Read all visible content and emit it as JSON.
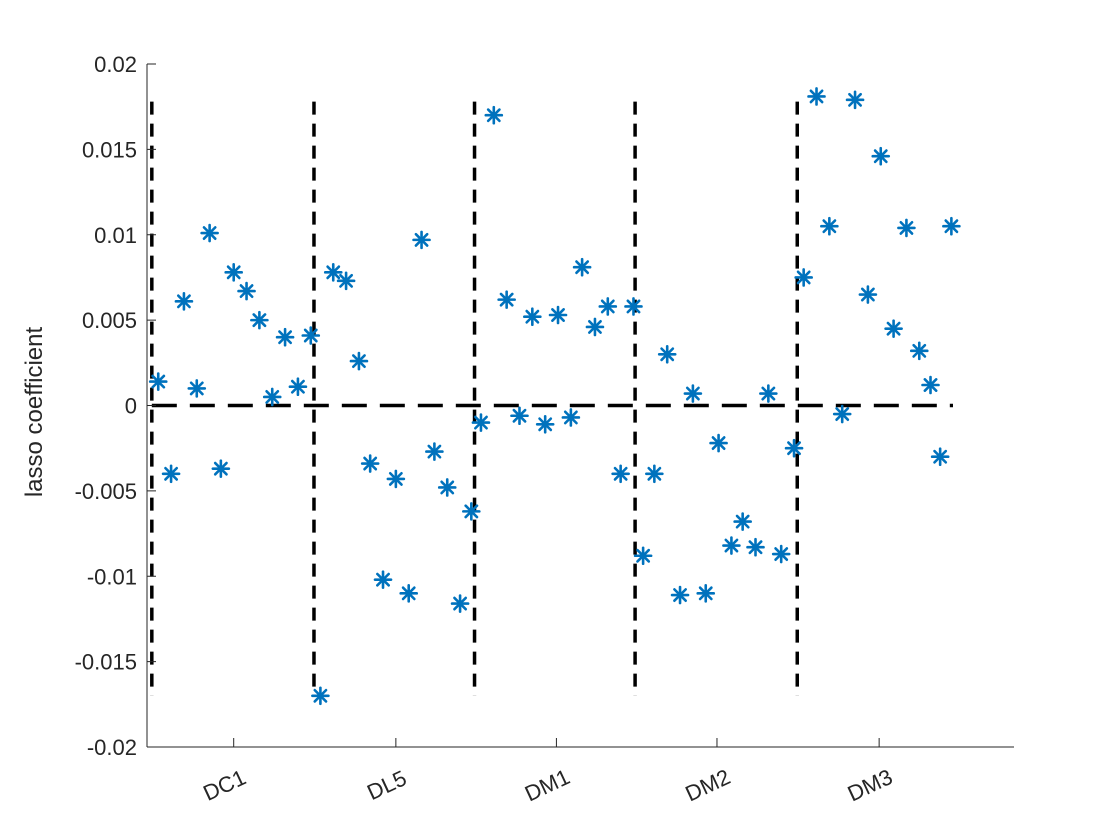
{
  "chart_data": {
    "type": "scatter",
    "title": "",
    "xlabel": "",
    "ylabel": "lasso coefficient",
    "ylim": [
      -0.02,
      0.02
    ],
    "xlim": [
      0,
      54
    ],
    "y_ticks": [
      "-0.02",
      "-0.015",
      "-0.01",
      "-0.005",
      "0",
      "0.005",
      "0.01",
      "0.015",
      "0.02"
    ],
    "y_tick_values": [
      -0.02,
      -0.015,
      -0.01,
      -0.005,
      0,
      0.005,
      0.01,
      0.015,
      0.02
    ],
    "categories": [
      "DC1",
      "DL5",
      "DM1",
      "DM2",
      "DM3"
    ],
    "category_centers": [
      5.4,
      15.5,
      25.5,
      35.5,
      45.6
    ],
    "x_tick_rotation_deg": -25,
    "group_separators": [
      0.3,
      10.4,
      20.4,
      30.4,
      40.5
    ],
    "separator_range": [
      -0.017,
      0.0178
    ],
    "zero_line_range": [
      0.3,
      50.2
    ],
    "marker": "asterisk",
    "marker_color": "#0072BD",
    "reference_line_color": "#000000",
    "grid": false,
    "legend": false,
    "points": [
      [
        0.7,
        0.0014
      ],
      [
        1.5,
        -0.004
      ],
      [
        2.3,
        0.0061
      ],
      [
        3.1,
        0.001
      ],
      [
        3.9,
        0.0101
      ],
      [
        4.6,
        -0.0037
      ],
      [
        5.4,
        0.0078
      ],
      [
        6.2,
        0.0067
      ],
      [
        7.0,
        0.005
      ],
      [
        7.8,
        0.0005
      ],
      [
        8.6,
        0.004
      ],
      [
        9.4,
        0.0011
      ],
      [
        10.2,
        0.0041
      ],
      [
        10.8,
        -0.017
      ],
      [
        11.6,
        0.0078
      ],
      [
        12.4,
        0.0073
      ],
      [
        13.2,
        0.0026
      ],
      [
        13.9,
        -0.0034
      ],
      [
        14.7,
        -0.0102
      ],
      [
        15.5,
        -0.0043
      ],
      [
        16.3,
        -0.011
      ],
      [
        17.1,
        0.0097
      ],
      [
        17.9,
        -0.0027
      ],
      [
        18.7,
        -0.0048
      ],
      [
        19.5,
        -0.0116
      ],
      [
        20.2,
        -0.0062
      ],
      [
        20.8,
        -0.001
      ],
      [
        21.6,
        0.017
      ],
      [
        22.4,
        0.0062
      ],
      [
        23.2,
        -0.0006
      ],
      [
        24.0,
        0.0052
      ],
      [
        24.8,
        -0.0011
      ],
      [
        25.6,
        0.0053
      ],
      [
        26.4,
        -0.0007
      ],
      [
        27.1,
        0.0081
      ],
      [
        27.9,
        0.0046
      ],
      [
        28.7,
        0.0058
      ],
      [
        29.5,
        -0.004
      ],
      [
        30.3,
        0.0058
      ],
      [
        30.9,
        -0.0088
      ],
      [
        31.6,
        -0.004
      ],
      [
        32.4,
        0.003
      ],
      [
        33.2,
        -0.0111
      ],
      [
        34.0,
        0.0007
      ],
      [
        34.8,
        -0.011
      ],
      [
        35.6,
        -0.0022
      ],
      [
        36.4,
        -0.0082
      ],
      [
        37.1,
        -0.0068
      ],
      [
        37.9,
        -0.0083
      ],
      [
        38.7,
        0.0007
      ],
      [
        39.5,
        -0.0087
      ],
      [
        40.3,
        -0.0025
      ],
      [
        40.9,
        0.0075
      ],
      [
        41.7,
        0.0181
      ],
      [
        42.5,
        0.0105
      ],
      [
        43.3,
        -0.0005
      ],
      [
        44.1,
        0.0179
      ],
      [
        44.9,
        0.0065
      ],
      [
        45.7,
        0.0146
      ],
      [
        46.5,
        0.0045
      ],
      [
        47.3,
        0.0104
      ],
      [
        48.1,
        0.0032
      ],
      [
        48.8,
        0.0012
      ],
      [
        49.4,
        -0.003
      ],
      [
        50.1,
        0.0105
      ]
    ]
  }
}
